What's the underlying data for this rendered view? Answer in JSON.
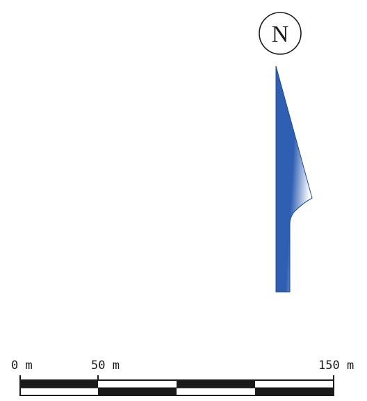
{
  "north_arrow": {
    "letter": "N",
    "fill_color": "#2f5fb3",
    "highlight_color": "#ffffff"
  },
  "scale_bar": {
    "labels": [
      "0 m",
      "50 m",
      "150 m"
    ],
    "dark_color": "#1a1a1a",
    "light_color": "#ffffff"
  }
}
